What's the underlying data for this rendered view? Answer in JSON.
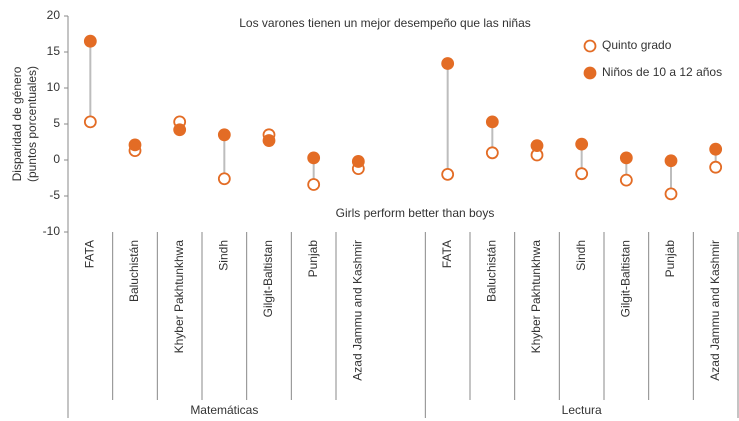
{
  "chart_data": {
    "type": "dot",
    "annotations": [
      "Los varones tienen un mejor desempeño que las niñas",
      "Girls perform better than boys"
    ],
    "y_label": [
      "Disparidad de género",
      "(puntos porcentuales)"
    ],
    "groups": [
      "Matemáticas",
      "Lectura"
    ],
    "categories": [
      "FATA",
      "Baluchistán",
      "Khyber Pakhtunkhwa",
      "Sindh",
      "Gilgit-Baltistan",
      "Punjab",
      "Azad Jammu and Kashmir",
      "FATA",
      "Baluchistán",
      "Khyber Pakhtunkhwa",
      "Sindh",
      "Gilgit-Baltistan",
      "Punjab",
      "Azad Jammu and Kashmir"
    ],
    "series": [
      {
        "name": "Quinto grado",
        "color": "#e36c25",
        "marker": "open",
        "values": [
          5.3,
          1.3,
          5.3,
          -2.6,
          3.5,
          -3.4,
          -1.2,
          -2.0,
          1.0,
          0.7,
          -1.9,
          -2.8,
          -4.7,
          -1.0
        ]
      },
      {
        "name": "Niños de 10 a 12 años",
        "color": "#e36c25",
        "marker": "filled",
        "values": [
          16.5,
          2.1,
          4.2,
          3.5,
          2.7,
          0.3,
          -0.2,
          13.4,
          5.3,
          2.0,
          2.2,
          0.3,
          -0.1,
          1.5
        ]
      }
    ],
    "connector_color": "#bdbdbd",
    "ylim": [
      -10,
      20
    ],
    "yticks": [
      -10,
      -5,
      0,
      5,
      10,
      15,
      20
    ],
    "legend": "top-right"
  }
}
